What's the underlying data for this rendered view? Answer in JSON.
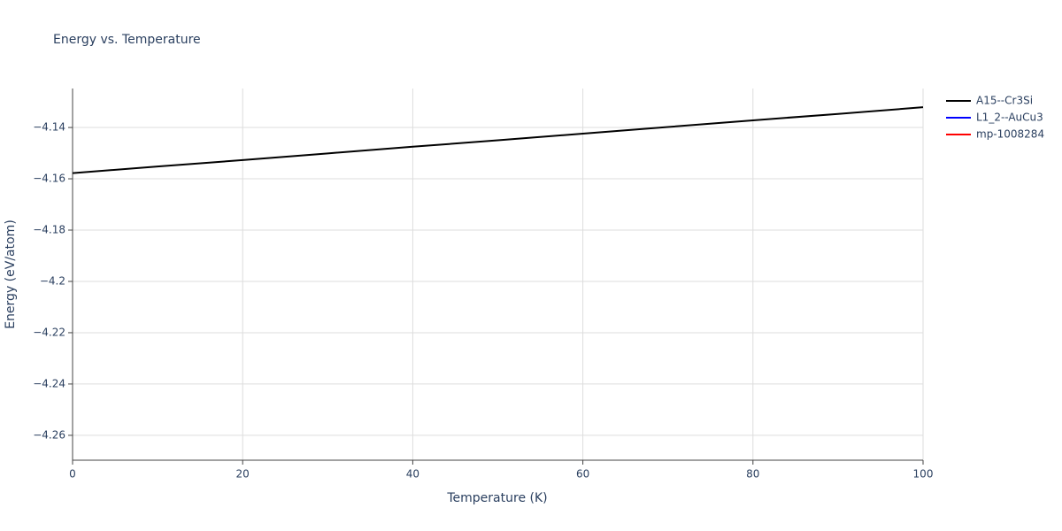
{
  "chart_data": {
    "type": "line",
    "title": "Energy vs. Temperature",
    "x_label": "Temperature (K)",
    "y_label": "Energy (eV/atom)",
    "x": [
      0,
      10,
      20,
      30,
      40,
      50,
      60,
      70,
      80,
      90,
      100
    ],
    "series": [
      {
        "name": "A15--Cr3Si",
        "color": "#000000",
        "values": [
          -4.1578,
          -4.1552,
          -4.1527,
          -4.1501,
          -4.1475,
          -4.145,
          -4.1424,
          -4.1398,
          -4.1372,
          -4.1347,
          -4.1321
        ]
      },
      {
        "name": "L1_2--AuCu3",
        "color": "#0000ff",
        "values": [
          null,
          null,
          null,
          null,
          null,
          null,
          null,
          null,
          null,
          null,
          null
        ]
      },
      {
        "name": "mp-1008284",
        "color": "#ff0000",
        "values": [
          null,
          null,
          null,
          null,
          null,
          null,
          null,
          null,
          null,
          null,
          null
        ]
      }
    ],
    "xlim": [
      0,
      100
    ],
    "xticks": [
      0,
      20,
      40,
      60,
      80,
      100
    ],
    "ylim": [
      -4.2697,
      -4.1248
    ],
    "yticks": [
      {
        "value": -4.26,
        "label": "−4.26"
      },
      {
        "value": -4.24,
        "label": "−4.24"
      },
      {
        "value": -4.22,
        "label": "−4.22"
      },
      {
        "value": -4.2,
        "label": "−4.2"
      },
      {
        "value": -4.18,
        "label": "−4.18"
      },
      {
        "value": -4.16,
        "label": "−4.16"
      },
      {
        "value": -4.14,
        "label": "−4.14"
      }
    ],
    "grid": true,
    "legend": "right"
  }
}
